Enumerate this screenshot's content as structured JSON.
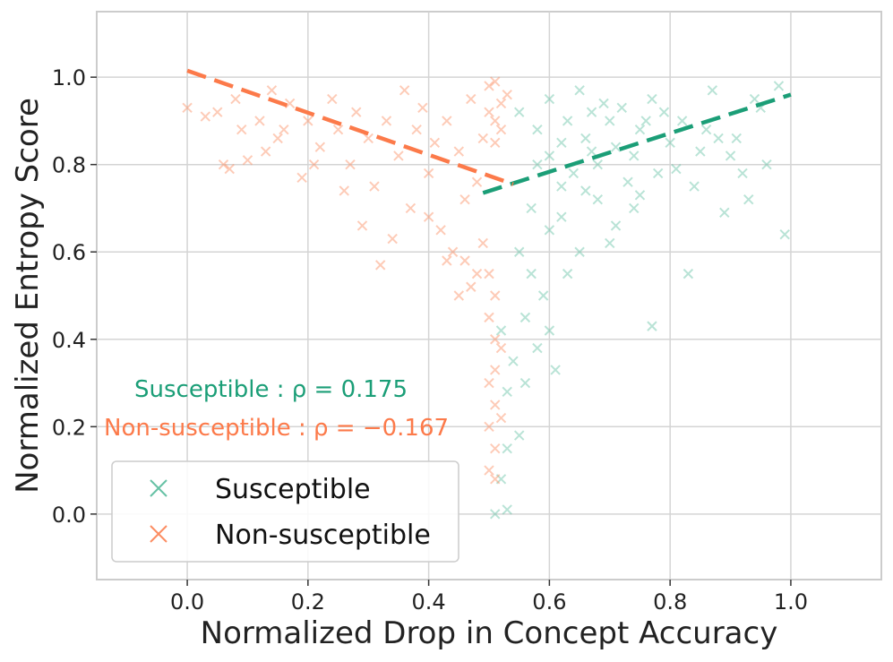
{
  "chart_data": {
    "type": "scatter",
    "title": "",
    "xlabel": "Normalized Drop in Concept Accuracy",
    "ylabel": "Normalized Entropy Score",
    "xlim": [
      -0.15,
      1.15
    ],
    "ylim": [
      -0.15,
      1.15
    ],
    "x_ticks": [
      0.0,
      0.2,
      0.4,
      0.6,
      0.8,
      1.0
    ],
    "y_ticks": [
      0.0,
      0.2,
      0.4,
      0.6,
      0.8,
      1.0
    ],
    "x_tick_labels": [
      "0.0",
      "0.2",
      "0.4",
      "0.6",
      "0.8",
      "1.0"
    ],
    "y_tick_labels": [
      "0.0",
      "0.2",
      "0.4",
      "0.6",
      "0.8",
      "1.0"
    ],
    "grid": true,
    "legend_position": "bottom-left",
    "series": [
      {
        "name": "Susceptible",
        "color": "#66c2a5",
        "marker": "x",
        "points": [
          [
            0.55,
            0.92
          ],
          [
            0.58,
            0.88
          ],
          [
            0.6,
            0.95
          ],
          [
            0.62,
            0.85
          ],
          [
            0.63,
            0.9
          ],
          [
            0.65,
            0.97
          ],
          [
            0.66,
            0.86
          ],
          [
            0.67,
            0.92
          ],
          [
            0.68,
            0.8
          ],
          [
            0.7,
            0.9
          ],
          [
            0.71,
            0.84
          ],
          [
            0.72,
            0.93
          ],
          [
            0.74,
            0.82
          ],
          [
            0.75,
            0.88
          ],
          [
            0.77,
            0.95
          ],
          [
            0.78,
            0.78
          ],
          [
            0.8,
            0.85
          ],
          [
            0.82,
            0.9
          ],
          [
            0.84,
            0.75
          ],
          [
            0.85,
            0.83
          ],
          [
            0.87,
            0.97
          ],
          [
            0.9,
            0.82
          ],
          [
            0.92,
            0.78
          ],
          [
            0.95,
            0.93
          ],
          [
            0.98,
            0.98
          ],
          [
            0.99,
            0.64
          ],
          [
            0.96,
            0.8
          ],
          [
            0.93,
            0.72
          ],
          [
            0.88,
            0.86
          ],
          [
            0.83,
            0.55
          ],
          [
            0.77,
            0.43
          ],
          [
            0.74,
            0.7
          ],
          [
            0.7,
            0.62
          ],
          [
            0.68,
            0.72
          ],
          [
            0.65,
            0.6
          ],
          [
            0.63,
            0.55
          ],
          [
            0.62,
            0.75
          ],
          [
            0.6,
            0.65
          ],
          [
            0.59,
            0.5
          ],
          [
            0.58,
            0.8
          ],
          [
            0.57,
            0.7
          ],
          [
            0.56,
            0.45
          ],
          [
            0.55,
            0.6
          ],
          [
            0.54,
            0.35
          ],
          [
            0.53,
            0.28
          ],
          [
            0.52,
            0.42
          ],
          [
            0.56,
            0.3
          ],
          [
            0.58,
            0.38
          ],
          [
            0.6,
            0.42
          ],
          [
            0.61,
            0.33
          ],
          [
            0.57,
            0.55
          ],
          [
            0.55,
            0.18
          ],
          [
            0.53,
            0.15
          ],
          [
            0.51,
            0.0
          ],
          [
            0.53,
            0.01
          ],
          [
            0.52,
            0.08
          ],
          [
            0.64,
            0.78
          ],
          [
            0.69,
            0.94
          ],
          [
            0.73,
            0.76
          ],
          [
            0.76,
            0.9
          ],
          [
            0.79,
            0.92
          ],
          [
            0.81,
            0.79
          ],
          [
            0.86,
            0.88
          ],
          [
            0.89,
            0.69
          ],
          [
            0.91,
            0.86
          ],
          [
            0.94,
            0.95
          ],
          [
            0.6,
            0.82
          ],
          [
            0.62,
            0.68
          ],
          [
            0.66,
            0.74
          ],
          [
            0.71,
            0.66
          ],
          [
            0.75,
            0.73
          ],
          [
            0.67,
            0.83
          ]
        ],
        "trend": {
          "x": [
            0.49,
            1.0
          ],
          "y": [
            0.735,
            0.96
          ]
        },
        "annotation": "Susceptible    : ρ = 0.175",
        "rho": 0.175
      },
      {
        "name": "Non-susceptible",
        "color": "#fc8d62",
        "marker": "x",
        "points": [
          [
            0.0,
            0.93
          ],
          [
            0.03,
            0.91
          ],
          [
            0.05,
            0.92
          ],
          [
            0.06,
            0.8
          ],
          [
            0.07,
            0.79
          ],
          [
            0.09,
            0.88
          ],
          [
            0.12,
            0.9
          ],
          [
            0.13,
            0.83
          ],
          [
            0.14,
            0.97
          ],
          [
            0.15,
            0.86
          ],
          [
            0.17,
            0.94
          ],
          [
            0.19,
            0.77
          ],
          [
            0.2,
            0.9
          ],
          [
            0.22,
            0.84
          ],
          [
            0.24,
            0.95
          ],
          [
            0.25,
            0.88
          ],
          [
            0.27,
            0.8
          ],
          [
            0.28,
            0.92
          ],
          [
            0.3,
            0.86
          ],
          [
            0.31,
            0.75
          ],
          [
            0.32,
            0.57
          ],
          [
            0.33,
            0.9
          ],
          [
            0.35,
            0.82
          ],
          [
            0.36,
            0.97
          ],
          [
            0.37,
            0.7
          ],
          [
            0.38,
            0.88
          ],
          [
            0.39,
            0.93
          ],
          [
            0.4,
            0.78
          ],
          [
            0.41,
            0.85
          ],
          [
            0.42,
            0.65
          ],
          [
            0.43,
            0.9
          ],
          [
            0.44,
            0.6
          ],
          [
            0.45,
            0.83
          ],
          [
            0.46,
            0.72
          ],
          [
            0.47,
            0.95
          ],
          [
            0.48,
            0.55
          ],
          [
            0.49,
            0.86
          ],
          [
            0.5,
            0.92
          ],
          [
            0.5,
            0.98
          ],
          [
            0.51,
            0.99
          ],
          [
            0.51,
            0.9
          ],
          [
            0.51,
            0.85
          ],
          [
            0.52,
            0.94
          ],
          [
            0.52,
            0.88
          ],
          [
            0.53,
            0.96
          ],
          [
            0.5,
            0.45
          ],
          [
            0.51,
            0.4
          ],
          [
            0.51,
            0.33
          ],
          [
            0.5,
            0.3
          ],
          [
            0.52,
            0.38
          ],
          [
            0.51,
            0.25
          ],
          [
            0.5,
            0.2
          ],
          [
            0.51,
            0.15
          ],
          [
            0.5,
            0.1
          ],
          [
            0.51,
            0.08
          ],
          [
            0.52,
            0.22
          ],
          [
            0.51,
            0.5
          ],
          [
            0.5,
            0.55
          ],
          [
            0.49,
            0.62
          ],
          [
            0.47,
            0.52
          ],
          [
            0.45,
            0.5
          ],
          [
            0.43,
            0.58
          ],
          [
            0.29,
            0.66
          ],
          [
            0.26,
            0.74
          ],
          [
            0.21,
            0.8
          ],
          [
            0.16,
            0.88
          ],
          [
            0.1,
            0.81
          ],
          [
            0.08,
            0.95
          ],
          [
            0.34,
            0.63
          ],
          [
            0.4,
            0.68
          ],
          [
            0.46,
            0.58
          ],
          [
            0.48,
            0.76
          ]
        ],
        "trend": {
          "x": [
            0.0,
            0.54
          ],
          "y": [
            1.015,
            0.755
          ]
        },
        "annotation": "Non-susceptible : ρ = −0.167",
        "rho": -0.167
      }
    ]
  }
}
